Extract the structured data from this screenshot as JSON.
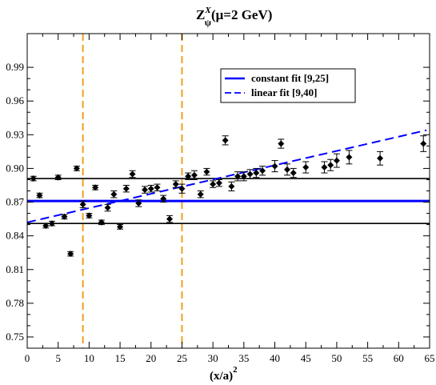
{
  "chart_data": {
    "type": "scatter",
    "title": {
      "main": "Z",
      "superscript": "X",
      "subscript": "ψ",
      "rest": "(μ=2 GeV)"
    },
    "xlabel": {
      "main": "(x/a)",
      "superscript": "2"
    },
    "ylabel": "",
    "xlim": [
      0,
      65
    ],
    "ylim": [
      0.74,
      1.02
    ],
    "xticks": [
      0,
      5,
      10,
      15,
      20,
      25,
      30,
      35,
      40,
      45,
      50,
      55,
      60,
      65
    ],
    "yticks": [
      "0.75",
      "0.78",
      "0.81",
      "0.84",
      "0.87",
      "0.90",
      "0.93",
      "0.96",
      "0.99"
    ],
    "grid": false,
    "legend_position": "top-right",
    "vertical_lines": [
      {
        "x": 9,
        "color": "#f0a020",
        "style": "dashed"
      },
      {
        "x": 25,
        "color": "#f0a020",
        "style": "dashed"
      }
    ],
    "horizontal_lines": [
      {
        "y": 0.891,
        "color": "#000000"
      },
      {
        "y": 0.871,
        "color": "#0000ff"
      },
      {
        "y": 0.851,
        "color": "#000000"
      }
    ],
    "series": [
      {
        "name": "constant fit  [9,25]",
        "type": "line",
        "color": "#0000ff",
        "style": "solid",
        "x": [
          0,
          65
        ],
        "y": [
          0.871,
          0.871
        ]
      },
      {
        "name": "linear fit [9,40]",
        "type": "line",
        "color": "#0000ff",
        "style": "dashed",
        "x": [
          0,
          64.5
        ],
        "y": [
          0.852,
          0.934
        ]
      },
      {
        "type": "scatter",
        "color": "#000000",
        "marker": "diamond",
        "x": [
          1,
          2,
          3,
          4,
          5,
          6,
          7,
          8,
          9,
          10,
          11,
          12,
          13,
          14,
          15,
          16,
          17,
          18,
          19,
          20,
          21,
          22,
          23,
          24,
          25,
          26,
          27,
          28,
          29,
          30,
          31,
          32,
          33,
          34,
          35,
          36,
          37,
          38,
          40,
          41,
          42,
          43,
          45,
          48,
          49,
          50,
          52,
          57,
          64
        ],
        "y": [
          0.891,
          0.876,
          0.849,
          0.851,
          0.892,
          0.857,
          0.824,
          0.9,
          0.868,
          0.858,
          0.883,
          0.852,
          0.865,
          0.877,
          0.848,
          0.882,
          0.895,
          0.869,
          0.881,
          0.882,
          0.883,
          0.873,
          0.855,
          0.886,
          0.882,
          0.893,
          0.894,
          0.877,
          0.897,
          0.886,
          0.887,
          0.925,
          0.884,
          0.893,
          0.893,
          0.895,
          0.896,
          0.898,
          0.902,
          0.922,
          0.899,
          0.896,
          0.901,
          0.901,
          0.903,
          0.907,
          0.91,
          0.909,
          0.922
        ],
        "err": [
          0.002,
          0.002,
          0.002,
          0.002,
          0.002,
          0.002,
          0.002,
          0.002,
          0.003,
          0.002,
          0.002,
          0.002,
          0.003,
          0.003,
          0.002,
          0.003,
          0.003,
          0.003,
          0.003,
          0.003,
          0.003,
          0.003,
          0.003,
          0.003,
          0.004,
          0.003,
          0.004,
          0.003,
          0.003,
          0.003,
          0.003,
          0.004,
          0.004,
          0.004,
          0.004,
          0.004,
          0.004,
          0.004,
          0.005,
          0.004,
          0.005,
          0.004,
          0.005,
          0.005,
          0.005,
          0.006,
          0.006,
          0.006,
          0.007
        ]
      }
    ]
  }
}
